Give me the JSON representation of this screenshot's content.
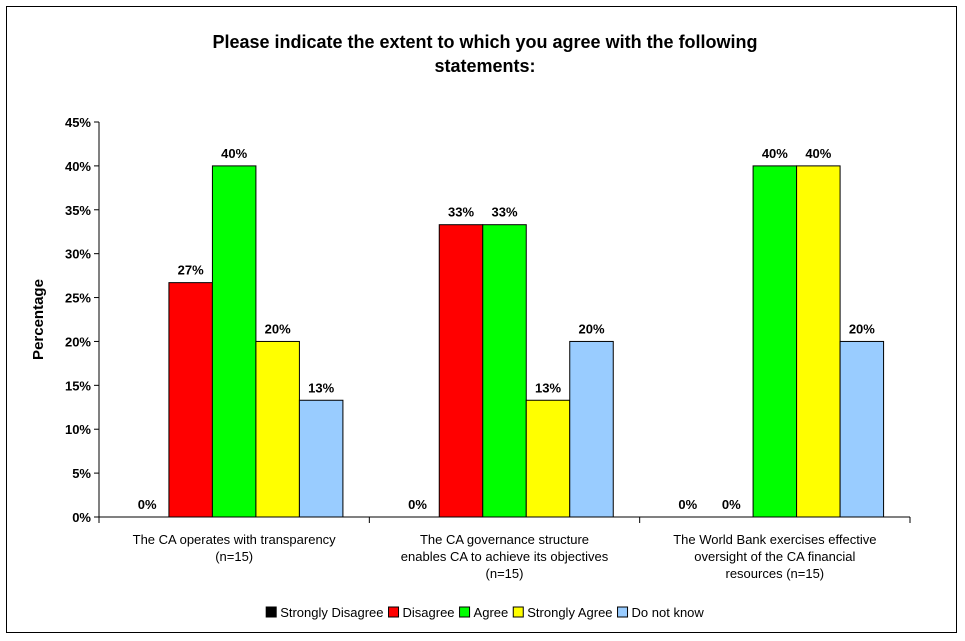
{
  "chart_data": {
    "type": "bar",
    "title": "Please indicate the extent to which you agree with the following statements:",
    "ylabel": "Percentage",
    "xlabel": "",
    "ylim": [
      0,
      45
    ],
    "yticks": [
      "0%",
      "5%",
      "10%",
      "15%",
      "20%",
      "25%",
      "30%",
      "35%",
      "40%",
      "45%"
    ],
    "grid": false,
    "legend_position": "bottom",
    "categories": [
      [
        "The CA operates with transparency",
        "(n=15)"
      ],
      [
        "The CA governance structure",
        "enables CA to achieve its objectives",
        "(n=15)"
      ],
      [
        "The World Bank exercises effective",
        "oversight of the CA financial",
        "resources (n=15)"
      ]
    ],
    "series": [
      {
        "name": "Strongly Disagree",
        "color": "#000000",
        "values": [
          0,
          0,
          0
        ],
        "labels": [
          "0%",
          "0%",
          "0%"
        ]
      },
      {
        "name": "Disagree",
        "color": "#ff0000",
        "values": [
          26.7,
          33.3,
          0
        ],
        "labels": [
          "27%",
          "33%",
          "0%"
        ]
      },
      {
        "name": "Agree",
        "color": "#00ff00",
        "values": [
          40,
          33.3,
          40
        ],
        "labels": [
          "40%",
          "33%",
          "40%"
        ]
      },
      {
        "name": "Strongly Agree",
        "color": "#ffff00",
        "values": [
          20,
          13.3,
          40
        ],
        "labels": [
          "20%",
          "13%",
          "40%"
        ]
      },
      {
        "name": "Do not know",
        "color": "#99ccff",
        "values": [
          13.3,
          20,
          20
        ],
        "labels": [
          "13%",
          "20%",
          "20%"
        ]
      }
    ]
  }
}
